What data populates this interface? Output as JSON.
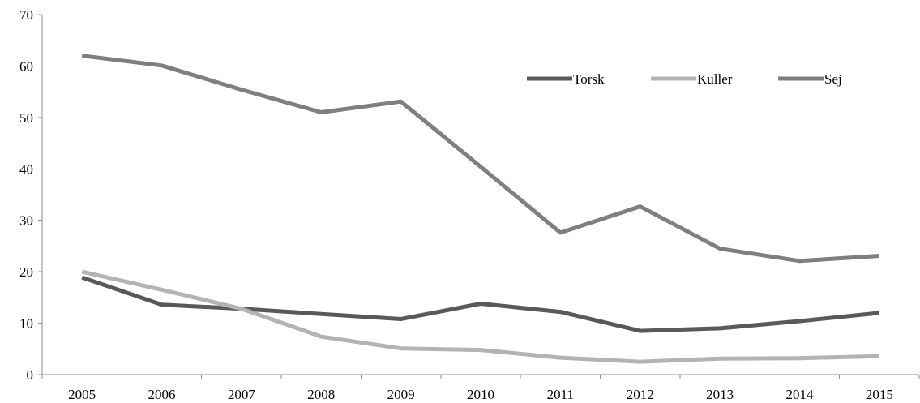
{
  "chart_data": {
    "type": "line",
    "title": "",
    "xlabel": "",
    "ylabel": "",
    "categories": [
      "2005",
      "2006",
      "2007",
      "2008",
      "2009",
      "2010",
      "2011",
      "2012",
      "2013",
      "2014",
      "2015"
    ],
    "ylim": [
      0,
      70
    ],
    "yticks": [
      0,
      10,
      20,
      30,
      40,
      50,
      60,
      70
    ],
    "grid": false,
    "legend_position": "top-right",
    "series": [
      {
        "name": "Torsk",
        "color": "#595959",
        "values": [
          18.9,
          13.6,
          12.8,
          11.8,
          10.8,
          13.8,
          12.2,
          8.5,
          9.0,
          10.4,
          12.0
        ]
      },
      {
        "name": "Kuller",
        "color": "#b3b3b3",
        "values": [
          20.0,
          16.5,
          12.8,
          7.4,
          5.1,
          4.8,
          3.3,
          2.5,
          3.1,
          3.2,
          3.6
        ]
      },
      {
        "name": "Sej",
        "color": "#7f7f7f",
        "values": [
          62.0,
          60.1,
          55.4,
          51.0,
          53.1,
          40.4,
          27.6,
          32.7,
          24.5,
          22.1,
          23.1
        ]
      }
    ]
  }
}
